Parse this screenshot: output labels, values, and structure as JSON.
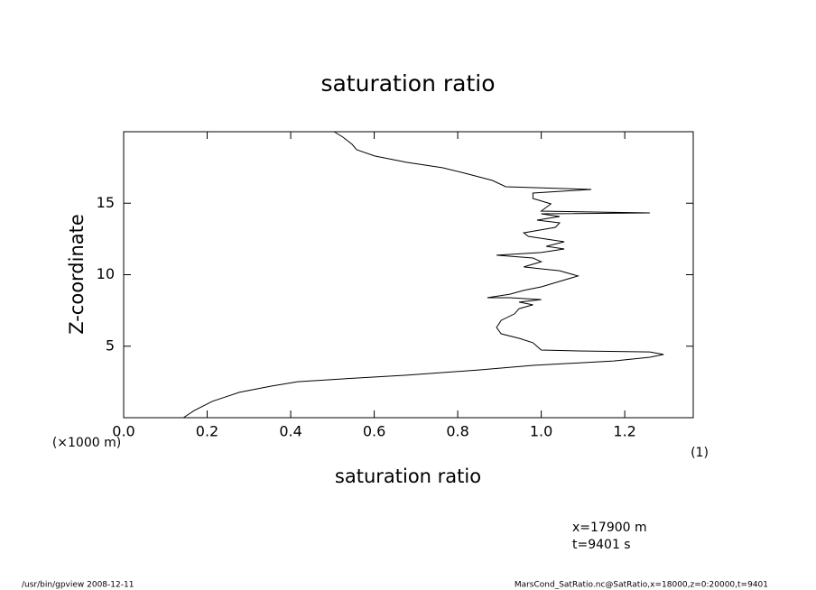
{
  "chart_data": {
    "type": "line",
    "title": "saturation ratio",
    "x_label": "saturation ratio",
    "x_unit": "(1)",
    "y_label": "Z-coordinate",
    "y_unit": "(×1000 m)",
    "annotations": [
      "x=17900 m",
      "t=9401 s"
    ],
    "footer_left": "/usr/bin/gpview   2008-12-11",
    "footer_right": "MarsCond_SatRatio.nc@SatRatio,x=18000,z=0:20000,t=9401",
    "color": "#000000",
    "xlim": [
      0,
      1.364
    ],
    "xticks": [
      {
        "value": 0,
        "label": "0.0"
      },
      0.2,
      0.4,
      0.6,
      0.8,
      {
        "value": 1,
        "label": "1.0"
      },
      1.2
    ],
    "ylim": [
      0,
      20
    ],
    "yticks": [
      5,
      10,
      15
    ],
    "values": [
      0.143,
      0.169,
      0.212,
      0.277,
      0.352,
      0.417,
      0.525,
      0.677,
      0.85,
      0.98,
      1.174,
      1.26,
      1.293,
      1.26,
      1.088,
      1.0,
      0.98,
      0.947,
      0.904,
      0.893,
      0.904,
      0.936,
      0.947,
      0.98,
      0.947,
      1.0,
      0.925,
      0.871,
      0.925,
      0.958,
      1.0,
      1.044,
      1.088,
      1.044,
      1.0,
      0.958,
      1.0,
      0.98,
      0.893,
      1.0,
      1.055,
      1.012,
      1.055,
      0.969,
      0.958,
      1.034,
      1.044,
      0.99,
      1.044,
      1.0,
      1.26,
      1.0,
      1.023,
      0.98,
      0.98,
      1.12,
      0.915,
      0.883,
      0.817,
      0.763,
      0.677,
      0.601,
      0.558,
      0.547,
      0.525,
      0.504
    ],
    "z": [
      0,
      0.5,
      1.14,
      1.77,
      2.2,
      2.52,
      2.71,
      2.97,
      3.34,
      3.66,
      3.97,
      4.23,
      4.42,
      4.6,
      4.67,
      4.73,
      5.24,
      5.55,
      5.87,
      6.31,
      6.81,
      7.26,
      7.63,
      7.89,
      8.08,
      8.26,
      8.39,
      8.39,
      8.64,
      8.9,
      9.15,
      9.53,
      9.91,
      10.28,
      10.41,
      10.54,
      10.91,
      11.17,
      11.36,
      11.55,
      11.8,
      11.99,
      12.3,
      12.68,
      12.93,
      13.31,
      13.63,
      13.82,
      14.07,
      14.26,
      14.32,
      14.45,
      14.95,
      15.33,
      15.71,
      15.96,
      16.15,
      16.59,
      17.1,
      17.48,
      17.86,
      18.3,
      18.74,
      19.12,
      19.62,
      20
    ]
  }
}
